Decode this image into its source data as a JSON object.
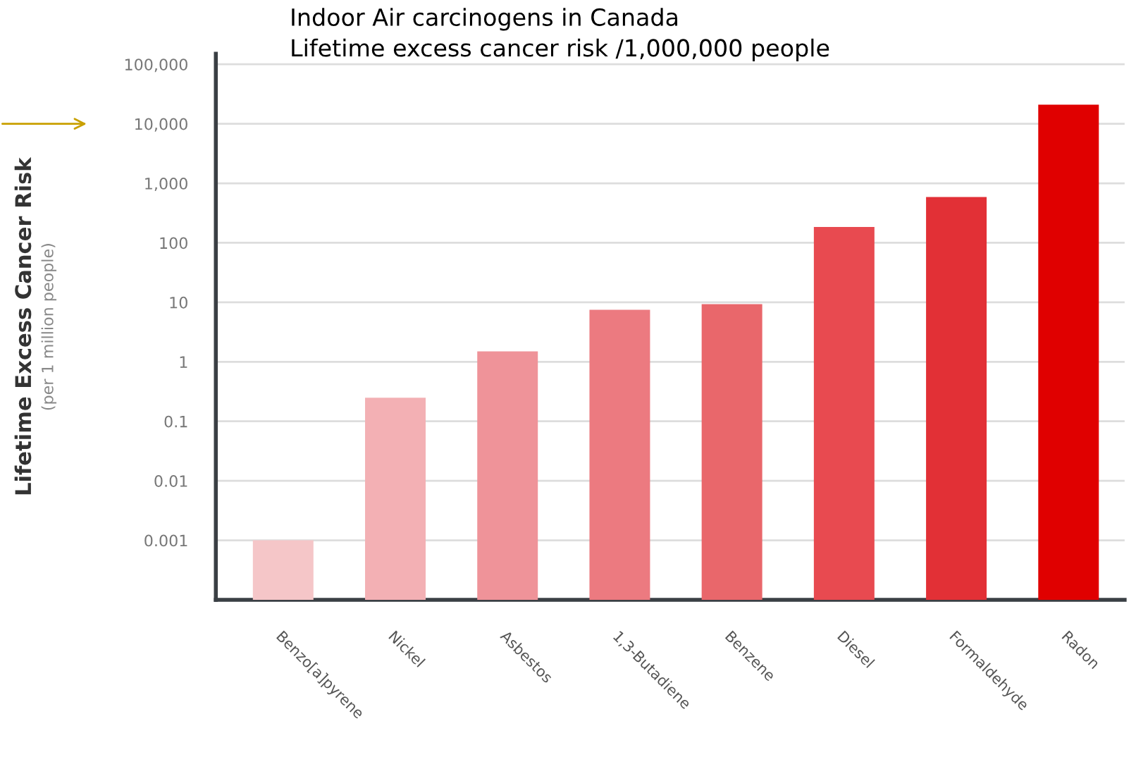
{
  "chart_data": {
    "type": "bar",
    "title": "Indoor Air carcinogens in Canada",
    "subtitle": "Lifetime excess cancer risk /1,000,000 people",
    "ylabel": "Lifetime Excess Cancer Risk",
    "annotations": [
      "(per 1 million people)"
    ],
    "categories": [
      "Benzo[a]pyrene",
      "Nickel",
      "Asbestos",
      "1,3-Butadiene",
      "Benzene",
      "Diesel",
      "Formaldehyde",
      "Radon"
    ],
    "values": [
      0.001,
      0.25,
      1.5,
      7.5,
      9.3,
      185,
      590,
      21000
    ],
    "colors": [
      "#f5c6c8",
      "#f3b0b4",
      "#ef9399",
      "#ec7a80",
      "#e9676b",
      "#e84a50",
      "#e23036",
      "#e00000"
    ],
    "log": "y",
    "ylim": [
      0.0001,
      150000
    ],
    "yticks": [
      0.001,
      0.01,
      0.1,
      1,
      10,
      100,
      {
        "value": 1000,
        "label": "1,000"
      },
      {
        "value": 10000,
        "label": "10,000"
      },
      {
        "value": 100000,
        "label": "100,000"
      }
    ],
    "grid": "y"
  }
}
